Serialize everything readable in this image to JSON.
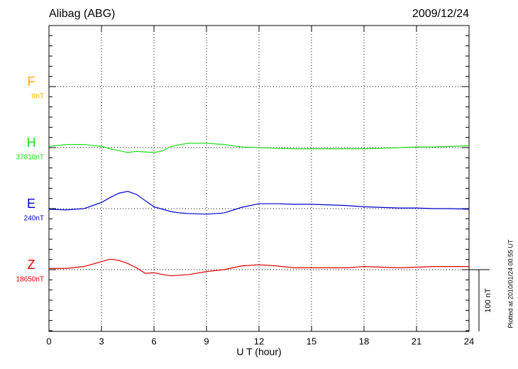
{
  "chart_data": {
    "type": "line",
    "title": "Alibag (ABG)",
    "date": "2009/12/24",
    "xlabel": "U T (hour)",
    "footnote": "Plotted at 2010/01/24 00:55 UT",
    "scale_bar": {
      "value": 100,
      "label": "100 nT"
    },
    "xlim": [
      0,
      24
    ],
    "xticks": [
      0,
      3,
      6,
      9,
      12,
      15,
      18,
      21,
      24
    ],
    "grid": true,
    "x": [
      0,
      1,
      2,
      3,
      3.5,
      4,
      4.5,
      5,
      5.5,
      6,
      6.5,
      7,
      7.5,
      8,
      9,
      10,
      11,
      12,
      13,
      14,
      15,
      16,
      17,
      18,
      19,
      20,
      21,
      22,
      23,
      24
    ],
    "series": [
      {
        "name": "F",
        "baseline": "0nT",
        "color": "#ffaa00",
        "values": [
          null,
          null,
          null,
          null,
          null,
          null,
          null,
          null,
          null,
          null,
          null,
          null,
          null,
          null,
          null,
          null,
          null,
          null,
          null,
          null,
          null,
          null,
          null,
          null,
          null,
          null,
          null,
          null,
          null,
          null
        ]
      },
      {
        "name": "H",
        "baseline": "37810nT",
        "color": "#22dd22",
        "values": [
          2,
          5,
          5,
          2,
          -2,
          -5,
          -8,
          -6,
          -7,
          -8,
          -5,
          2,
          5,
          7,
          7,
          5,
          1,
          0,
          -1,
          -2,
          -2,
          -2,
          -2,
          -2,
          -1,
          0,
          1,
          1,
          2,
          3
        ]
      },
      {
        "name": "E",
        "baseline": "240nT",
        "color": "#0000cc",
        "values": [
          -1,
          -2,
          0,
          10,
          18,
          25,
          28,
          23,
          13,
          3,
          -1,
          -5,
          -7,
          -8,
          -9,
          -7,
          2,
          8,
          8,
          7,
          7,
          6,
          5,
          3,
          2,
          1,
          1,
          0,
          0,
          -1
        ]
      },
      {
        "name": "Z",
        "baseline": "18650nT",
        "color": "#dd0000",
        "values": [
          2,
          2,
          5,
          13,
          17,
          15,
          10,
          3,
          -6,
          -5,
          -8,
          -10,
          -9,
          -8,
          -3,
          0,
          6,
          8,
          6,
          3,
          3,
          3,
          3,
          5,
          4,
          3,
          4,
          5,
          5,
          5
        ]
      }
    ]
  }
}
